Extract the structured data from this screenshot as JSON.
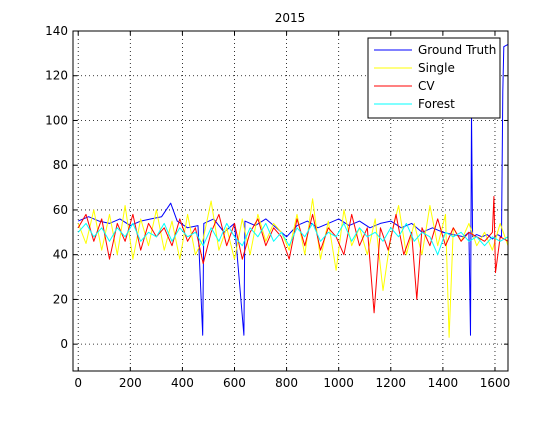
{
  "chart_data": {
    "type": "line",
    "title": "2015",
    "xlabel": "",
    "ylabel": "",
    "xlim": [
      -20,
      1650
    ],
    "ylim": [
      -12,
      140
    ],
    "xticks": [
      0,
      200,
      400,
      600,
      800,
      1000,
      1200,
      1400,
      1600
    ],
    "yticks": [
      0,
      20,
      40,
      60,
      80,
      100,
      120,
      140
    ],
    "grid": "dotted",
    "legend_position": "top-right",
    "series": [
      {
        "name": "Ground Truth",
        "color": "#0000ff",
        "points": [
          [
            0,
            55
          ],
          [
            40,
            57
          ],
          [
            80,
            55
          ],
          [
            120,
            54
          ],
          [
            160,
            56
          ],
          [
            200,
            53
          ],
          [
            240,
            55
          ],
          [
            280,
            56
          ],
          [
            320,
            57
          ],
          [
            355,
            63
          ],
          [
            380,
            55
          ],
          [
            420,
            52
          ],
          [
            460,
            53
          ],
          [
            478,
            4
          ],
          [
            482,
            54
          ],
          [
            520,
            56
          ],
          [
            560,
            50
          ],
          [
            600,
            54
          ],
          [
            636,
            4
          ],
          [
            640,
            55
          ],
          [
            680,
            53
          ],
          [
            720,
            56
          ],
          [
            760,
            52
          ],
          [
            800,
            48
          ],
          [
            840,
            53
          ],
          [
            880,
            55
          ],
          [
            920,
            52
          ],
          [
            960,
            54
          ],
          [
            1000,
            56
          ],
          [
            1040,
            53
          ],
          [
            1080,
            55
          ],
          [
            1120,
            52
          ],
          [
            1160,
            54
          ],
          [
            1200,
            55
          ],
          [
            1240,
            52
          ],
          [
            1280,
            54
          ],
          [
            1320,
            50
          ],
          [
            1360,
            52
          ],
          [
            1400,
            50
          ],
          [
            1440,
            49
          ],
          [
            1480,
            48
          ],
          [
            1500,
            50
          ],
          [
            1506,
            4
          ],
          [
            1510,
            104
          ],
          [
            1514,
            48
          ],
          [
            1530,
            49
          ],
          [
            1550,
            48
          ],
          [
            1570,
            49
          ],
          [
            1590,
            47
          ],
          [
            1610,
            49
          ],
          [
            1625,
            48
          ],
          [
            1630,
            113
          ],
          [
            1634,
            133
          ],
          [
            1650,
            134
          ]
        ]
      },
      {
        "name": "Single",
        "color": "#ffff00",
        "points": [
          [
            0,
            54
          ],
          [
            30,
            45
          ],
          [
            60,
            60
          ],
          [
            90,
            42
          ],
          [
            120,
            58
          ],
          [
            150,
            40
          ],
          [
            180,
            62
          ],
          [
            210,
            38
          ],
          [
            240,
            56
          ],
          [
            270,
            44
          ],
          [
            300,
            60
          ],
          [
            330,
            42
          ],
          [
            360,
            55
          ],
          [
            390,
            38
          ],
          [
            420,
            58
          ],
          [
            450,
            40
          ],
          [
            480,
            47
          ],
          [
            510,
            64
          ],
          [
            540,
            42
          ],
          [
            570,
            52
          ],
          [
            600,
            38
          ],
          [
            630,
            56
          ],
          [
            660,
            40
          ],
          [
            690,
            58
          ],
          [
            720,
            46
          ],
          [
            750,
            54
          ],
          [
            780,
            50
          ],
          [
            810,
            42
          ],
          [
            840,
            58
          ],
          [
            870,
            40
          ],
          [
            900,
            65
          ],
          [
            930,
            38
          ],
          [
            960,
            55
          ],
          [
            990,
            33
          ],
          [
            1020,
            60
          ],
          [
            1050,
            44
          ],
          [
            1080,
            52
          ],
          [
            1110,
            40
          ],
          [
            1140,
            56
          ],
          [
            1170,
            24
          ],
          [
            1200,
            48
          ],
          [
            1230,
            62
          ],
          [
            1260,
            40
          ],
          [
            1290,
            54
          ],
          [
            1320,
            40
          ],
          [
            1350,
            62
          ],
          [
            1380,
            44
          ],
          [
            1410,
            58
          ],
          [
            1424,
            3
          ],
          [
            1440,
            52
          ],
          [
            1470,
            46
          ],
          [
            1500,
            54
          ],
          [
            1530,
            44
          ],
          [
            1560,
            50
          ],
          [
            1590,
            42
          ],
          [
            1620,
            54
          ],
          [
            1650,
            44
          ]
        ]
      },
      {
        "name": "CV",
        "color": "#ff0000",
        "points": [
          [
            0,
            52
          ],
          [
            30,
            58
          ],
          [
            60,
            46
          ],
          [
            90,
            56
          ],
          [
            120,
            38
          ],
          [
            150,
            54
          ],
          [
            180,
            46
          ],
          [
            210,
            58
          ],
          [
            240,
            42
          ],
          [
            270,
            54
          ],
          [
            300,
            48
          ],
          [
            330,
            52
          ],
          [
            360,
            44
          ],
          [
            390,
            56
          ],
          [
            420,
            46
          ],
          [
            450,
            52
          ],
          [
            480,
            36
          ],
          [
            510,
            50
          ],
          [
            540,
            58
          ],
          [
            570,
            44
          ],
          [
            600,
            54
          ],
          [
            630,
            38
          ],
          [
            660,
            50
          ],
          [
            690,
            56
          ],
          [
            720,
            44
          ],
          [
            750,
            52
          ],
          [
            780,
            48
          ],
          [
            810,
            38
          ],
          [
            840,
            56
          ],
          [
            870,
            44
          ],
          [
            900,
            58
          ],
          [
            930,
            42
          ],
          [
            960,
            52
          ],
          [
            990,
            48
          ],
          [
            1020,
            40
          ],
          [
            1050,
            58
          ],
          [
            1080,
            44
          ],
          [
            1110,
            52
          ],
          [
            1136,
            14
          ],
          [
            1160,
            52
          ],
          [
            1190,
            42
          ],
          [
            1220,
            58
          ],
          [
            1250,
            40
          ],
          [
            1280,
            50
          ],
          [
            1300,
            20
          ],
          [
            1320,
            52
          ],
          [
            1350,
            44
          ],
          [
            1380,
            56
          ],
          [
            1410,
            44
          ],
          [
            1440,
            52
          ],
          [
            1470,
            46
          ],
          [
            1500,
            50
          ],
          [
            1530,
            48
          ],
          [
            1560,
            46
          ],
          [
            1590,
            50
          ],
          [
            1596,
            66
          ],
          [
            1602,
            32
          ],
          [
            1620,
            48
          ],
          [
            1650,
            46
          ]
        ]
      },
      {
        "name": "Forest",
        "color": "#00ffff",
        "points": [
          [
            0,
            50
          ],
          [
            30,
            54
          ],
          [
            60,
            48
          ],
          [
            90,
            52
          ],
          [
            120,
            46
          ],
          [
            150,
            52
          ],
          [
            180,
            48
          ],
          [
            210,
            54
          ],
          [
            240,
            46
          ],
          [
            270,
            50
          ],
          [
            300,
            48
          ],
          [
            330,
            54
          ],
          [
            360,
            46
          ],
          [
            390,
            52
          ],
          [
            420,
            48
          ],
          [
            450,
            50
          ],
          [
            480,
            44
          ],
          [
            510,
            52
          ],
          [
            540,
            46
          ],
          [
            570,
            54
          ],
          [
            600,
            48
          ],
          [
            630,
            44
          ],
          [
            660,
            52
          ],
          [
            690,
            48
          ],
          [
            720,
            54
          ],
          [
            750,
            46
          ],
          [
            780,
            50
          ],
          [
            810,
            44
          ],
          [
            840,
            52
          ],
          [
            870,
            48
          ],
          [
            900,
            54
          ],
          [
            930,
            46
          ],
          [
            960,
            50
          ],
          [
            990,
            48
          ],
          [
            1020,
            54
          ],
          [
            1050,
            46
          ],
          [
            1080,
            52
          ],
          [
            1110,
            48
          ],
          [
            1140,
            50
          ],
          [
            1170,
            46
          ],
          [
            1200,
            52
          ],
          [
            1230,
            48
          ],
          [
            1260,
            54
          ],
          [
            1290,
            46
          ],
          [
            1320,
            50
          ],
          [
            1350,
            48
          ],
          [
            1380,
            40
          ],
          [
            1410,
            50
          ],
          [
            1440,
            48
          ],
          [
            1470,
            50
          ],
          [
            1500,
            46
          ],
          [
            1530,
            48
          ],
          [
            1560,
            44
          ],
          [
            1590,
            48
          ],
          [
            1620,
            46
          ],
          [
            1650,
            48
          ]
        ]
      }
    ]
  }
}
